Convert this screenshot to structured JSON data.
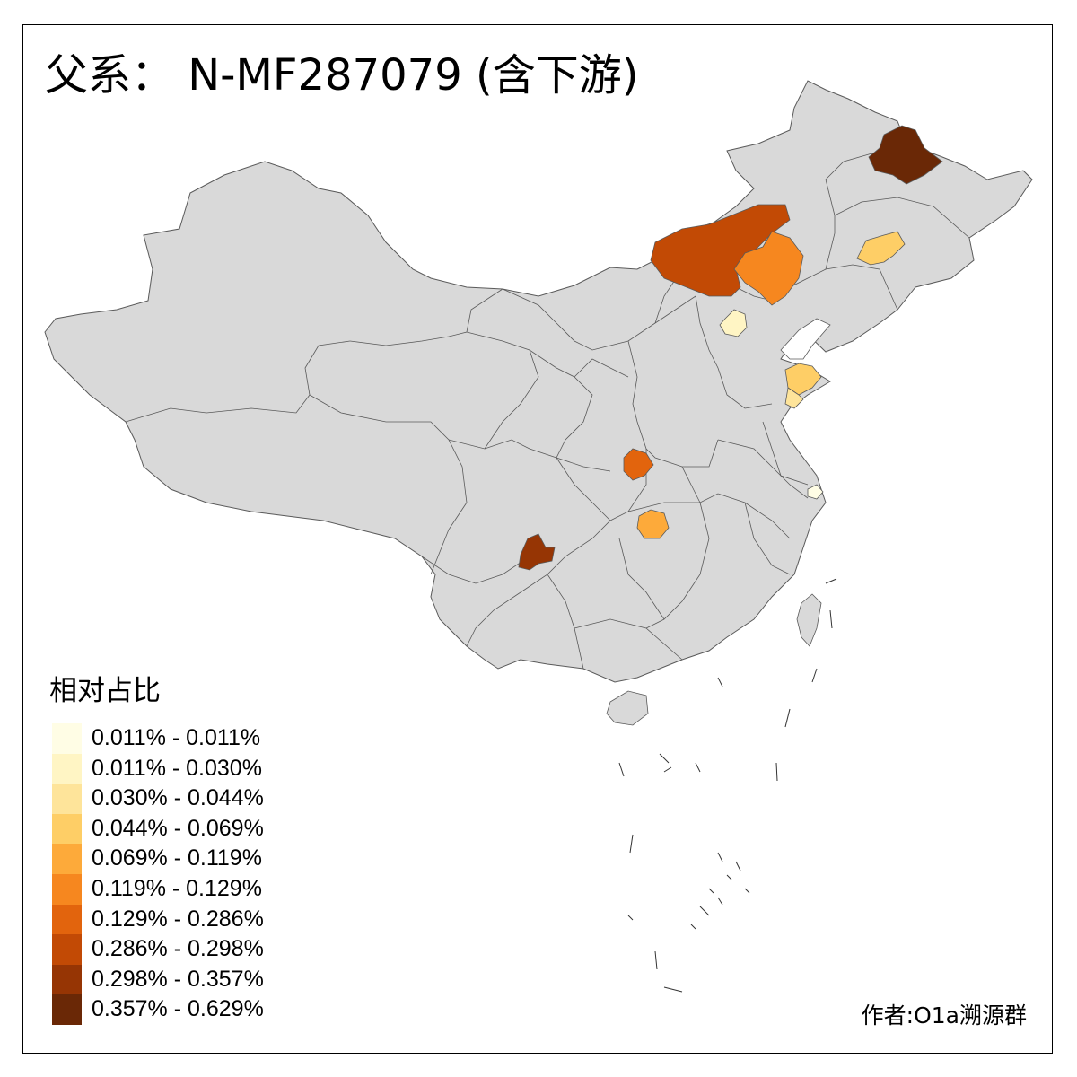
{
  "title": "父系： N-MF287079 (含下游)",
  "credit": "作者:O1a溯源群",
  "colors": {
    "frame": "#000000",
    "background": "#ffffff",
    "land_default": "#d9d9d9",
    "border": "#5a5a5a"
  },
  "legend": {
    "title": "相对占比",
    "items": [
      {
        "label": "0.011% - 0.011%",
        "color": "#fffde5"
      },
      {
        "label": "0.011% - 0.030%",
        "color": "#fff5c4"
      },
      {
        "label": "0.030% - 0.044%",
        "color": "#fee49a"
      },
      {
        "label": "0.044% - 0.069%",
        "color": "#fece66"
      },
      {
        "label": "0.069% - 0.119%",
        "color": "#fdaa3a"
      },
      {
        "label": "0.119% - 0.129%",
        "color": "#f6871f"
      },
      {
        "label": "0.129% - 0.286%",
        "color": "#e2640d"
      },
      {
        "label": "0.286% - 0.298%",
        "color": "#c24a05"
      },
      {
        "label": "0.298% - 0.357%",
        "color": "#963504"
      },
      {
        "label": "0.357% - 0.629%",
        "color": "#6a2806"
      }
    ]
  },
  "map": {
    "highlighted_regions": [
      {
        "name": "heilongjiang-north",
        "class": 9
      },
      {
        "name": "inner-mongolia-central",
        "class": 7
      },
      {
        "name": "inner-mongolia-east",
        "class": 5
      },
      {
        "name": "jilin-central",
        "class": 3
      },
      {
        "name": "beijing",
        "class": 1
      },
      {
        "name": "shandong-east",
        "class": 3
      },
      {
        "name": "shandong-southeast",
        "class": 2
      },
      {
        "name": "shanghai",
        "class": 0
      },
      {
        "name": "shaanxi-south",
        "class": 6
      },
      {
        "name": "hubei-west",
        "class": 4
      },
      {
        "name": "yunnan-northwest",
        "class": 8
      }
    ]
  }
}
